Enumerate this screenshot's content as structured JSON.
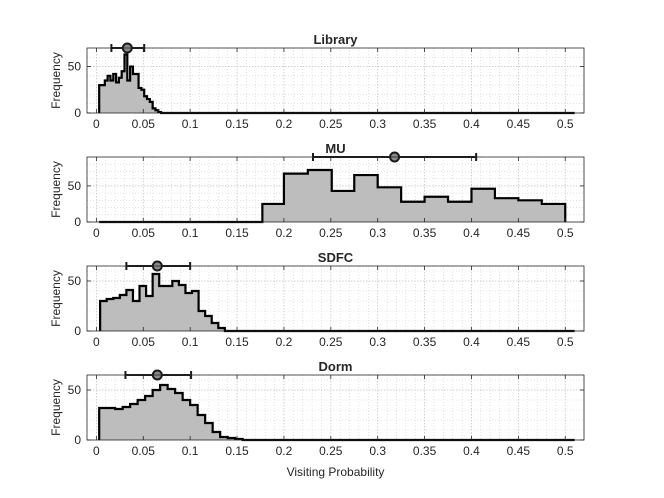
{
  "chart_data": [
    {
      "type": "histogram",
      "title": "Library",
      "ylabel": "Frequency",
      "xlabel": "",
      "xlim": [
        -0.01,
        0.52
      ],
      "ylim": [
        0,
        70
      ],
      "yticks": [
        0,
        50
      ],
      "xticks": [
        "0",
        "0.05",
        "0.1",
        "0.15",
        "0.2",
        "0.25",
        "0.3",
        "0.35",
        "0.4",
        "0.45",
        "0.5"
      ],
      "grid": true,
      "bin_edges": [
        0.003,
        0.006,
        0.009,
        0.012,
        0.015,
        0.018,
        0.021,
        0.024,
        0.027,
        0.03,
        0.033,
        0.036,
        0.039,
        0.042,
        0.045,
        0.048,
        0.051,
        0.054,
        0.057,
        0.06,
        0.063,
        0.066,
        0.069,
        0.51
      ],
      "counts": [
        30,
        30,
        35,
        40,
        35,
        42,
        33,
        38,
        45,
        63,
        35,
        50,
        42,
        42,
        27,
        25,
        18,
        15,
        12,
        5,
        3,
        1,
        0
      ],
      "mean": 0.033,
      "range": [
        0.016,
        0.051
      ]
    },
    {
      "type": "histogram",
      "title": "MU",
      "ylabel": "Frequency",
      "xlabel": "",
      "xlim": [
        -0.01,
        0.52
      ],
      "ylim": [
        0,
        90
      ],
      "yticks": [
        0,
        50
      ],
      "xticks": [
        "0",
        "0.05",
        "0.1",
        "0.15",
        "0.2",
        "0.25",
        "0.3",
        "0.35",
        "0.4",
        "0.45",
        "0.5"
      ],
      "grid": true,
      "bin_edges": [
        0.003,
        0.177,
        0.2,
        0.2255,
        0.251,
        0.275,
        0.3,
        0.325,
        0.35,
        0.375,
        0.4,
        0.425,
        0.45,
        0.475,
        0.5
      ],
      "counts": [
        0,
        25,
        67,
        72,
        43,
        65,
        48,
        28,
        35,
        28,
        46,
        33,
        30,
        25
      ],
      "mean": 0.318,
      "range": [
        0.231,
        0.405
      ]
    },
    {
      "type": "histogram",
      "title": "SDFC",
      "ylabel": "Frequency",
      "xlabel": "",
      "xlim": [
        -0.01,
        0.52
      ],
      "ylim": [
        0,
        65
      ],
      "yticks": [
        0,
        50
      ],
      "xticks": [
        "0",
        "0.05",
        "0.1",
        "0.15",
        "0.2",
        "0.25",
        "0.3",
        "0.35",
        "0.4",
        "0.45",
        "0.5"
      ],
      "grid": true,
      "bin_edges": [
        0.004,
        0.011,
        0.018,
        0.025,
        0.032,
        0.039,
        0.046,
        0.053,
        0.06,
        0.067,
        0.074,
        0.081,
        0.088,
        0.095,
        0.102,
        0.109,
        0.116,
        0.123,
        0.13,
        0.137,
        0.51
      ],
      "counts": [
        30,
        32,
        33,
        36,
        41,
        30,
        45,
        35,
        57,
        45,
        45,
        50,
        46,
        38,
        40,
        20,
        15,
        8,
        3,
        0
      ],
      "mean": 0.065,
      "range": [
        0.032,
        0.1
      ]
    },
    {
      "type": "histogram",
      "title": "Dorm",
      "ylabel": "Frequency",
      "xlabel": "Visiting Probability",
      "xlim": [
        -0.01,
        0.52
      ],
      "ylim": [
        0,
        65
      ],
      "yticks": [
        0,
        50
      ],
      "xticks": [
        "0",
        "0.05",
        "0.1",
        "0.15",
        "0.2",
        "0.25",
        "0.3",
        "0.35",
        "0.4",
        "0.45",
        "0.5"
      ],
      "grid": true,
      "bin_edges": [
        0.003,
        0.02,
        0.028,
        0.036,
        0.044,
        0.052,
        0.06,
        0.068,
        0.076,
        0.084,
        0.092,
        0.1,
        0.108,
        0.116,
        0.124,
        0.132,
        0.14,
        0.148,
        0.156,
        0.51
      ],
      "counts": [
        32,
        31,
        33,
        36,
        40,
        44,
        50,
        55,
        51,
        47,
        40,
        35,
        25,
        17,
        8,
        3,
        2,
        1,
        0
      ],
      "mean": 0.065,
      "range": [
        0.031,
        0.101
      ]
    }
  ]
}
